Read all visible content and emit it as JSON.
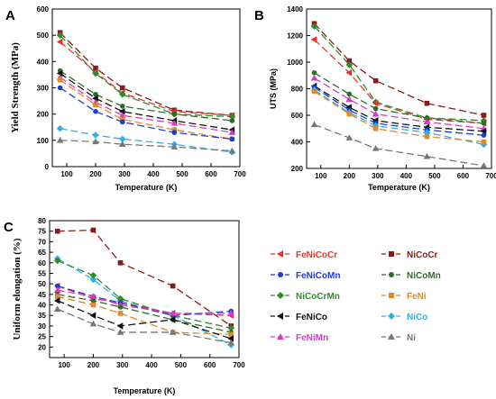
{
  "figure": {
    "series_styles": {
      "FeNiCoCr": {
        "color": "#e8332a",
        "marker": "triangle-left",
        "dash": "8,4"
      },
      "NiCoCr": {
        "color": "#8b1a1a",
        "marker": "square",
        "dash": "8,4"
      },
      "FeNiCoMn": {
        "color": "#1f3bd6",
        "marker": "circle",
        "dash": "8,4"
      },
      "NiCoMn": {
        "color": "#2f6b2f",
        "marker": "circle",
        "dash": "8,4"
      },
      "NiCoCrMn": {
        "color": "#2e8b2e",
        "marker": "diamond",
        "dash": "8,4"
      },
      "FeNi": {
        "color": "#e0882a",
        "marker": "square",
        "dash": "8,4"
      },
      "FeNiCo": {
        "color": "#111111",
        "marker": "triangle-left",
        "dash": "8,4"
      },
      "NiCo": {
        "color": "#2fb0e8",
        "marker": "diamond",
        "dash": "8,4"
      },
      "FeNiMn": {
        "color": "#d63acb",
        "marker": "triangle",
        "dash": "8,4"
      },
      "Ni": {
        "color": "#777777",
        "marker": "triangle",
        "dash": "8,4"
      }
    },
    "legend": {
      "placement": "bottom-right",
      "entries": [
        "FeNiCoCr",
        "NiCoCr",
        "FeNiCoMn",
        "NiCoMn",
        "NiCoCrMn",
        "FeNi",
        "FeNiCo",
        "NiCo",
        "FeNiMn",
        "Ni"
      ]
    }
  },
  "chart_data": [
    {
      "panel": "A",
      "type": "line",
      "xlabel": "Temperature (K)",
      "ylabel": "Yield Strength (MPa)",
      "xlim": [
        50,
        700
      ],
      "ylim": [
        0,
        600
      ],
      "xticks": [
        "100",
        "200",
        "300",
        "400",
        "500",
        "600",
        "700"
      ],
      "yticks": [
        "0",
        "100",
        "200",
        "300",
        "400",
        "500",
        "600"
      ],
      "x": [
        77,
        200,
        293,
        473,
        673
      ],
      "series": [
        {
          "name": "NiCoCr",
          "values": [
            510,
            375,
            300,
            215,
            195
          ]
        },
        {
          "name": "FeNiCoCr",
          "values": [
            475,
            360,
            280,
            210,
            195
          ]
        },
        {
          "name": "NiCoCrMn",
          "values": [
            500,
            355,
            275,
            200,
            190
          ]
        },
        {
          "name": "NiCoMn",
          "values": [
            365,
            275,
            230,
            200,
            175
          ]
        },
        {
          "name": "FeNiCo",
          "values": [
            355,
            260,
            210,
            175,
            140
          ]
        },
        {
          "name": "FeNiMn",
          "values": [
            340,
            245,
            195,
            165,
            130
          ]
        },
        {
          "name": "FeNi",
          "values": [
            330,
            235,
            180,
            140,
            105
          ]
        },
        {
          "name": "FeNiCoMn",
          "values": [
            300,
            210,
            170,
            130,
            105
          ]
        },
        {
          "name": "NiCo",
          "values": [
            145,
            120,
            105,
            85,
            55
          ]
        },
        {
          "name": "Ni",
          "values": [
            100,
            95,
            85,
            75,
            60
          ]
        }
      ]
    },
    {
      "panel": "B",
      "type": "line",
      "xlabel": "Temperature (K)",
      "ylabel": "UTS (MPa)",
      "xlim": [
        50,
        700
      ],
      "ylim": [
        200,
        1400
      ],
      "xticks": [
        "100",
        "200",
        "300",
        "400",
        "500",
        "600",
        "700"
      ],
      "yticks": [
        "200",
        "400",
        "600",
        "800",
        "1000",
        "1200",
        "1400"
      ],
      "x": [
        77,
        200,
        293,
        473,
        673
      ],
      "series": [
        {
          "name": "NiCoCr",
          "values": [
            1290,
            1010,
            860,
            690,
            600
          ]
        },
        {
          "name": "NiCoCrMn",
          "values": [
            1270,
            980,
            700,
            580,
            560
          ]
        },
        {
          "name": "FeNiCoCr",
          "values": [
            1170,
            920,
            690,
            570,
            540
          ]
        },
        {
          "name": "NiCoMn",
          "values": [
            920,
            760,
            650,
            580,
            540
          ]
        },
        {
          "name": "FeNiMn",
          "values": [
            880,
            720,
            610,
            550,
            500
          ]
        },
        {
          "name": "FeNiCo",
          "values": [
            820,
            660,
            560,
            510,
            480
          ]
        },
        {
          "name": "FeNiCoMn",
          "values": [
            810,
            640,
            540,
            490,
            450
          ]
        },
        {
          "name": "NiCo",
          "values": [
            790,
            620,
            520,
            470,
            380
          ]
        },
        {
          "name": "FeNi",
          "values": [
            780,
            610,
            500,
            440,
            400
          ]
        },
        {
          "name": "Ni",
          "values": [
            530,
            430,
            350,
            290,
            220
          ]
        }
      ]
    },
    {
      "panel": "C",
      "type": "line",
      "xlabel": "Temperature (K)",
      "ylabel": "Uniform elongation (%)",
      "xlim": [
        50,
        700
      ],
      "ylim": [
        15,
        80
      ],
      "xticks": [
        "100",
        "200",
        "300",
        "400",
        "500",
        "600",
        "700"
      ],
      "yticks": [
        "20",
        "25",
        "30",
        "35",
        "40",
        "45",
        "50",
        "55",
        "60",
        "65",
        "70",
        "75",
        "80"
      ],
      "x": [
        77,
        200,
        293,
        473,
        673
      ],
      "series": [
        {
          "name": "NiCoCr",
          "values": [
            75,
            75.5,
            60,
            49,
            30
          ]
        },
        {
          "name": "NiCo",
          "values": [
            62,
            52,
            42,
            35,
            21
          ]
        },
        {
          "name": "NiCoCrMn",
          "values": [
            61,
            54,
            43,
            35,
            29
          ]
        },
        {
          "name": "FeNiCoCr",
          "values": [
            49,
            43,
            41,
            36,
            35
          ]
        },
        {
          "name": "FeNiCoMn",
          "values": [
            49,
            44,
            41,
            35,
            37
          ]
        },
        {
          "name": "FeNiMn",
          "values": [
            47,
            44,
            40,
            36,
            36
          ]
        },
        {
          "name": "NiCoMn",
          "values": [
            45,
            42,
            39,
            33,
            27
          ]
        },
        {
          "name": "FeNi",
          "values": [
            44,
            40,
            36,
            27,
            26
          ]
        },
        {
          "name": "FeNiCo",
          "values": [
            42,
            35,
            30,
            33,
            24
          ]
        },
        {
          "name": "Ni",
          "values": [
            38,
            31,
            27,
            27,
            22
          ]
        }
      ]
    }
  ]
}
